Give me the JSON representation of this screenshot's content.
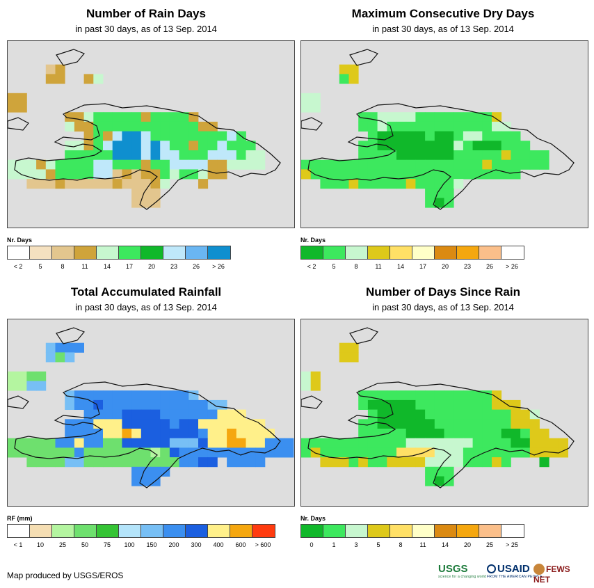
{
  "subtitle": "in past 30 days, as of 13 Sep. 2014",
  "panels": [
    {
      "id": "rain-days",
      "title": "Number of Rain Days",
      "legend_title": "Nr. Days",
      "legend_colors": [
        "#ffffff",
        "#f5e1c0",
        "#e3c68e",
        "#cfa43b",
        "#c7f7cf",
        "#3de85e",
        "#10b82a",
        "#bfe8fa",
        "#6ab6f2",
        "#0f8fcf"
      ],
      "legend_labels": [
        "< 2",
        "5",
        "8",
        "11",
        "14",
        "17",
        "20",
        "23",
        "26",
        "> 26"
      ],
      "grid": [
        "..............................",
        "....TA........................",
        "....AA..AP....................",
        "..............................",
        "DD............................",
        "DD............................",
        "......DDPGGGGGDGGGGD..........",
        "......PDDGGGGGGGGGGGDD........",
        "........DGAIWWIGGGGGGGGIG.....",
        "......PPDGIWWWIWIGGDGGIGGG....",
        "......GGGGGWWWIWIIGGGIIIGPP...",
        "PPPDPGGGGIIGGGDGGIIIIDDPPPP...",
        "PPPPDGGGGIITDTDDGPGGPDD.......",
        "..TTTDTTTTTDTTTDP...D.........",
        ".............TTT..............",
        ".............TTT.............."
      ]
    },
    {
      "id": "max-dry-days",
      "title": "Maximum Consecutive Dry Days",
      "legend_title": "Nr. Days",
      "legend_colors": [
        "#10b82a",
        "#3de85e",
        "#c7f7cf",
        "#dec91a",
        "#ffe066",
        "#ffffc8",
        "#db8a12",
        "#f5a70f",
        "#fbbf8a",
        "#ffffff"
      ],
      "legend_labels": [
        "< 2",
        "5",
        "8",
        "11",
        "14",
        "17",
        "20",
        "23",
        "26",
        "> 26"
      ],
      "grid": [
        "..............................",
        "....YY........................",
        "....GY........................",
        "..............................",
        "PP............................",
        "PP............................",
        "......GGPLLLGGGGGGGGY.........",
        "......GGPGGGGGGGGGGGLL........",
        ".......GDDDDDGDDGPPGGGG.......",
        "......GGDDDDDDDDPGDDDGGG......",
        "......GGGGDDDDDDGGGGGYGGGG....",
        "GGGGGGGGGGGGGGGGGGGYGGGGGG....",
        "YGGGGGGGGGGGGGGGGGGGGGG.......",
        "..GGGYGGGGGYGGGGP.............",
        ".............GGG..............",
        ".............GDG.............."
      ]
    },
    {
      "id": "total-rainfall",
      "title": "Total Accumulated Rainfall",
      "legend_title": "RF (mm)",
      "legend_colors": [
        "#ffffff",
        "#f5deb3",
        "#b4f5a0",
        "#6ee06e",
        "#35c435",
        "#b4e4fa",
        "#77bff5",
        "#3b8ff0",
        "#1b5fe0",
        "#fff08a",
        "#f5a70f",
        "#ff3b0f"
      ],
      "legend_labels": [
        "< 1",
        "10",
        "25",
        "50",
        "75",
        "100",
        "150",
        "200",
        "300",
        "400",
        "600",
        "> 600"
      ],
      "grid": [
        "..............................",
        "....LBBB......................",
        "....LGL.......................",
        "..............................",
        "PPGG..........................",
        "PPLL..........................",
        "......LBBBBBBBBBBBBL..........",
        "......LBBMBBBBBBBBBBBLL.......",
        "........BBBBMMMMBBBBBBYYY.....",
        "......BBBYYYMMMMMBMMYYYYYYY...",
        "......BBBBYYOYMMMMMMBYYOYYYY..",
        "GGGGGBBYBBGGMMMMMLLLMYYOOYYBBB",
        "GGGGGGGBGGGGGGGPGMBBBBBBBBBBBB",
        "..GGGGLLGGGGGGGGGGBBMM.BBBB...",
        ".............BBBB.............",
        ".............BBB.............."
      ]
    },
    {
      "id": "days-since-rain",
      "title": "Number of Days Since Rain",
      "legend_title": "Nr. Days",
      "legend_colors": [
        "#10b82a",
        "#3de85e",
        "#c7f7cf",
        "#dec91a",
        "#ffe066",
        "#ffffc8",
        "#db8a12",
        "#f5a70f",
        "#fbbf8a",
        "#ffffff"
      ],
      "legend_labels": [
        "0",
        "1",
        "3",
        "5",
        "8",
        "11",
        "14",
        "20",
        "25",
        "> 25"
      ],
      "grid": [
        "..............................",
        "....YY........................",
        "....YY........................",
        "..............................",
        "PY............................",
        "PY............................",
        "......GGGGGGGGGGGGGGY.........",
        "......GDDDDDGGGGGGGGYYY.......",
        ".......GDDDDDGGGGGGGGGYYP.....",
        "......GGDDDDDDGGGGGGGGYYY.....",
        "......GGGGGDDDDGGGGGGDDGYY....",
        "GGGGGGGGGGGPPPPPPPGGGGDDYYYY..",
        "GYGGGGGGGGHHHHPPPGGGGGGGYYYY..",
        "..YYYGYGGYYYYPPPPGGGYG...D....",
        ".............GGG..............",
        ".............GDG.............."
      ]
    }
  ],
  "footer": {
    "credit": "Map produced by USGS/EROS",
    "usgs": "USGS",
    "usgs_tagline": "science for a changing world",
    "usaid": "USAID",
    "usaid_tagline": "FROM THE AMERICAN PEOPLE",
    "fews": "FEWS NET"
  },
  "grid_palettes": {
    "rain-days": {
      "T": "#e3c68e",
      "A": "#cfa43b",
      "D": "#cfa43b",
      "P": "#c7f7cf",
      "G": "#3de85e",
      "W": "#0f8fcf",
      "I": "#bfe8fa"
    },
    "max-dry-days": {
      "G": "#3de85e",
      "D": "#10b82a",
      "P": "#c7f7cf",
      "L": "#c7f7cf",
      "Y": "#dec91a"
    },
    "total-rainfall": {
      "L": "#77bff5",
      "B": "#3b8ff0",
      "M": "#1b5fe0",
      "G": "#6ee06e",
      "P": "#b4f5a0",
      "Y": "#fff08a",
      "O": "#f5a70f"
    },
    "days-since-rain": {
      "G": "#3de85e",
      "D": "#10b82a",
      "P": "#c7f7cf",
      "Y": "#dec91a",
      "H": "#ffe066"
    }
  }
}
